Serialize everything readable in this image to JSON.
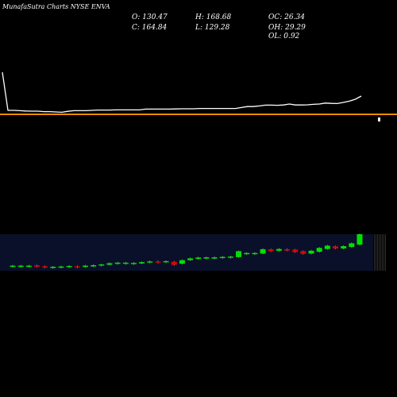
{
  "header": {
    "title": "MunafaSutra Charts NYSE ENVA",
    "open_label": "O: 130.47",
    "high_label": "H: 168.68",
    "oc_label": "OC: 26.34",
    "close_label": "C: 164.84",
    "low_label": "L: 129.28",
    "oh_label": "OH: 29.29",
    "ol_label": "OL: 0.92"
  },
  "colors": {
    "background": "#000000",
    "text": "#ffffff",
    "line": "#ffffff",
    "hline": "#ff8c00",
    "up": "#00e000",
    "down": "#e00000",
    "grid": "#1a2a6e"
  },
  "chart_data": {
    "type": "candlestick",
    "title": "MunafaSutra Charts NYSE ENVA",
    "ohlc_summary": {
      "open": 130.47,
      "high": 168.68,
      "low": 129.28,
      "close": 164.84,
      "oc": 26.34,
      "oh": 29.29,
      "ol": 0.92
    },
    "price_line": [
      165,
      141,
      141,
      140.8,
      140.6,
      140.5,
      140.5,
      140.2,
      140.2,
      140,
      139.8,
      140.4,
      140.8,
      140.8,
      140.8,
      141,
      141.2,
      141.2,
      141.2,
      141.3,
      141.3,
      141.3,
      141.3,
      141.3,
      141.8,
      141.8,
      141.8,
      141.8,
      141.8,
      141.9,
      142,
      142,
      142,
      142.2,
      142.2,
      142.2,
      142.2,
      142.2,
      142.2,
      142.2,
      142.8,
      143.4,
      143.4,
      143.8,
      144.3,
      144.3,
      144.2,
      144.4,
      145,
      144.4,
      144.4,
      144.5,
      144.8,
      145,
      145.6,
      145.4,
      145.3,
      146,
      146.8,
      148,
      150
    ],
    "reference_level": 139.5,
    "candles": [
      {
        "dir": "up",
        "open": 139.4,
        "close": 139.6
      },
      {
        "dir": "up",
        "open": 139.4,
        "close": 139.6
      },
      {
        "dir": "up",
        "open": 139.4,
        "close": 139.6
      },
      {
        "dir": "down",
        "open": 139.7,
        "close": 139.3
      },
      {
        "dir": "down",
        "open": 139.4,
        "close": 138.9
      },
      {
        "dir": "up",
        "open": 138.9,
        "close": 139.2
      },
      {
        "dir": "up",
        "open": 139.1,
        "close": 139.3
      },
      {
        "dir": "up",
        "open": 139.2,
        "close": 139.5
      },
      {
        "dir": "down",
        "open": 139.4,
        "close": 139.1
      },
      {
        "dir": "up",
        "open": 139.1,
        "close": 139.6
      },
      {
        "dir": "up",
        "open": 139.5,
        "close": 139.8
      },
      {
        "dir": "up",
        "open": 139.7,
        "close": 140.1
      },
      {
        "dir": "up",
        "open": 140.0,
        "close": 140.6
      },
      {
        "dir": "up",
        "open": 140.5,
        "close": 140.8
      },
      {
        "dir": "up",
        "open": 140.5,
        "close": 140.8
      },
      {
        "dir": "up",
        "open": 140.4,
        "close": 140.7
      },
      {
        "dir": "up",
        "open": 140.5,
        "close": 141.0
      },
      {
        "dir": "up",
        "open": 140.9,
        "close": 141.3
      },
      {
        "dir": "down",
        "open": 141.3,
        "close": 141.0
      },
      {
        "dir": "up",
        "open": 141.0,
        "close": 141.4
      },
      {
        "dir": "down",
        "open": 141.2,
        "close": 140.0
      },
      {
        "dir": "up",
        "open": 140.4,
        "close": 141.8
      },
      {
        "dir": "up",
        "open": 141.8,
        "close": 142.5
      },
      {
        "dir": "up",
        "open": 142.3,
        "close": 142.8
      },
      {
        "dir": "up",
        "open": 142.6,
        "close": 142.9
      },
      {
        "dir": "up",
        "open": 142.7,
        "close": 142.9
      },
      {
        "dir": "up",
        "open": 142.8,
        "close": 143.1
      },
      {
        "dir": "up",
        "open": 142.9,
        "close": 143.2
      },
      {
        "dir": "up",
        "open": 143.0,
        "close": 145.3
      },
      {
        "dir": "up",
        "open": 144.3,
        "close": 144.6
      },
      {
        "dir": "up",
        "open": 144.2,
        "close": 144.6
      },
      {
        "dir": "up",
        "open": 144.4,
        "close": 146.1
      },
      {
        "dir": "down",
        "open": 146.0,
        "close": 145.3
      },
      {
        "dir": "up",
        "open": 145.5,
        "close": 146.2
      },
      {
        "dir": "down",
        "open": 146.1,
        "close": 145.6
      },
      {
        "dir": "down",
        "open": 145.9,
        "close": 145.0
      },
      {
        "dir": "down",
        "open": 145.3,
        "close": 144.3
      },
      {
        "dir": "up",
        "open": 144.4,
        "close": 145.5
      },
      {
        "dir": "up",
        "open": 145.1,
        "close": 146.6
      },
      {
        "dir": "up",
        "open": 146.2,
        "close": 147.5
      },
      {
        "dir": "down",
        "open": 147.2,
        "close": 146.4
      },
      {
        "dir": "up",
        "open": 146.4,
        "close": 147.3
      },
      {
        "dir": "up",
        "open": 147.0,
        "close": 148.4
      },
      {
        "dir": "up",
        "open": 147.9,
        "close": 152.0
      }
    ]
  }
}
